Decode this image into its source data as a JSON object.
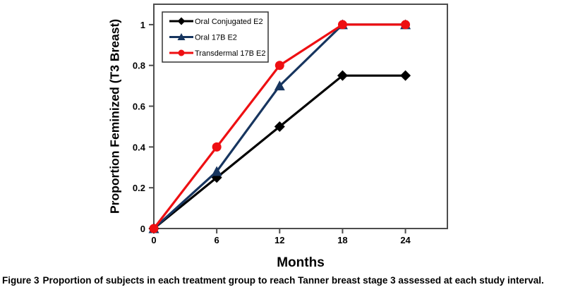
{
  "figure": {
    "caption_label": "Figure 3",
    "caption_text": "Proportion of subjects in each treatment group to reach Tanner breast stage 3 assessed at each study interval."
  },
  "chart_data": {
    "type": "line",
    "title": "",
    "xlabel": "Months",
    "ylabel": "Proportion Feminized (T3 Breast)",
    "x": [
      0,
      6,
      12,
      18,
      24
    ],
    "xticks": [
      0,
      6,
      12,
      18,
      24
    ],
    "yticks": [
      0,
      0.2,
      0.4,
      0.6,
      0.8,
      1
    ],
    "xlim": [
      0,
      28
    ],
    "ylim": [
      0,
      1.1
    ],
    "grid": false,
    "legend_position": "top-left-inside",
    "axis_color": "#4d4d4d",
    "series": [
      {
        "name": "Oral Conjugated E2",
        "color": "#000000",
        "marker": "diamond",
        "values": [
          0,
          0.25,
          0.5,
          0.75,
          0.75
        ]
      },
      {
        "name": "Oral 17B E2",
        "color": "#17355f",
        "marker": "triangle",
        "values": [
          0,
          0.28,
          0.7,
          1,
          1
        ]
      },
      {
        "name": "Transdermal 17B E2",
        "color": "#ee0f12",
        "marker": "circle",
        "values": [
          0,
          0.4,
          0.8,
          1,
          1
        ]
      }
    ]
  }
}
